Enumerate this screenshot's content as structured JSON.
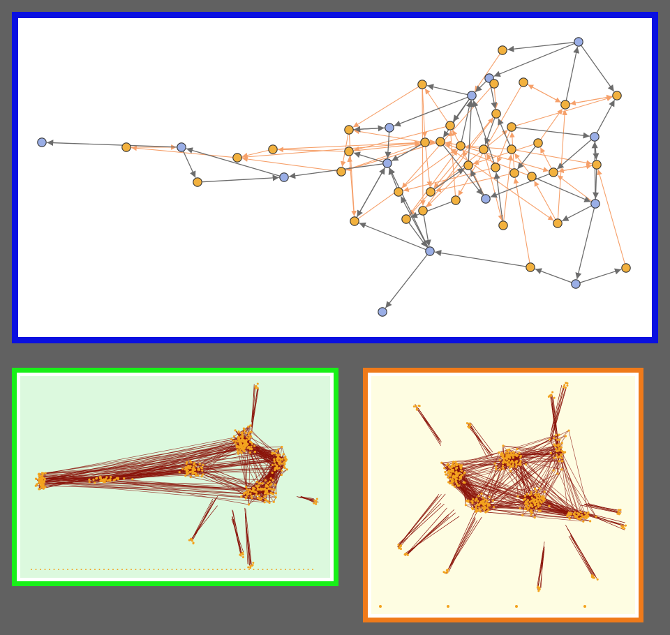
{
  "colors": {
    "background": "#616161",
    "top_border": "#0a10e0",
    "left_border": "#18f018",
    "right_border": "#ef7a1a",
    "blue_node": "#9aaee6",
    "orange_node": "#f2b13e",
    "node_stroke": "#333333",
    "gray_edge": "#6c6c6c",
    "orange_edge": "#f6a06a",
    "dense_edge": "#8a1208",
    "dense_node": "#f3a31e",
    "left_fill": "#dcf9de",
    "right_fill": "#fefde2"
  },
  "panels": [
    {
      "name": "detailed-network",
      "node_types": [
        "blue-node",
        "orange-node"
      ],
      "edge_types": [
        "gray-arrow",
        "orange-arrow"
      ]
    },
    {
      "name": "elongated-dense-network",
      "node_types": [
        "orange-node"
      ],
      "edge_types": [
        "dark-red-edge"
      ]
    },
    {
      "name": "radial-dense-network",
      "node_types": [
        "orange-node"
      ],
      "edge_types": [
        "dark-red-edge"
      ]
    }
  ]
}
